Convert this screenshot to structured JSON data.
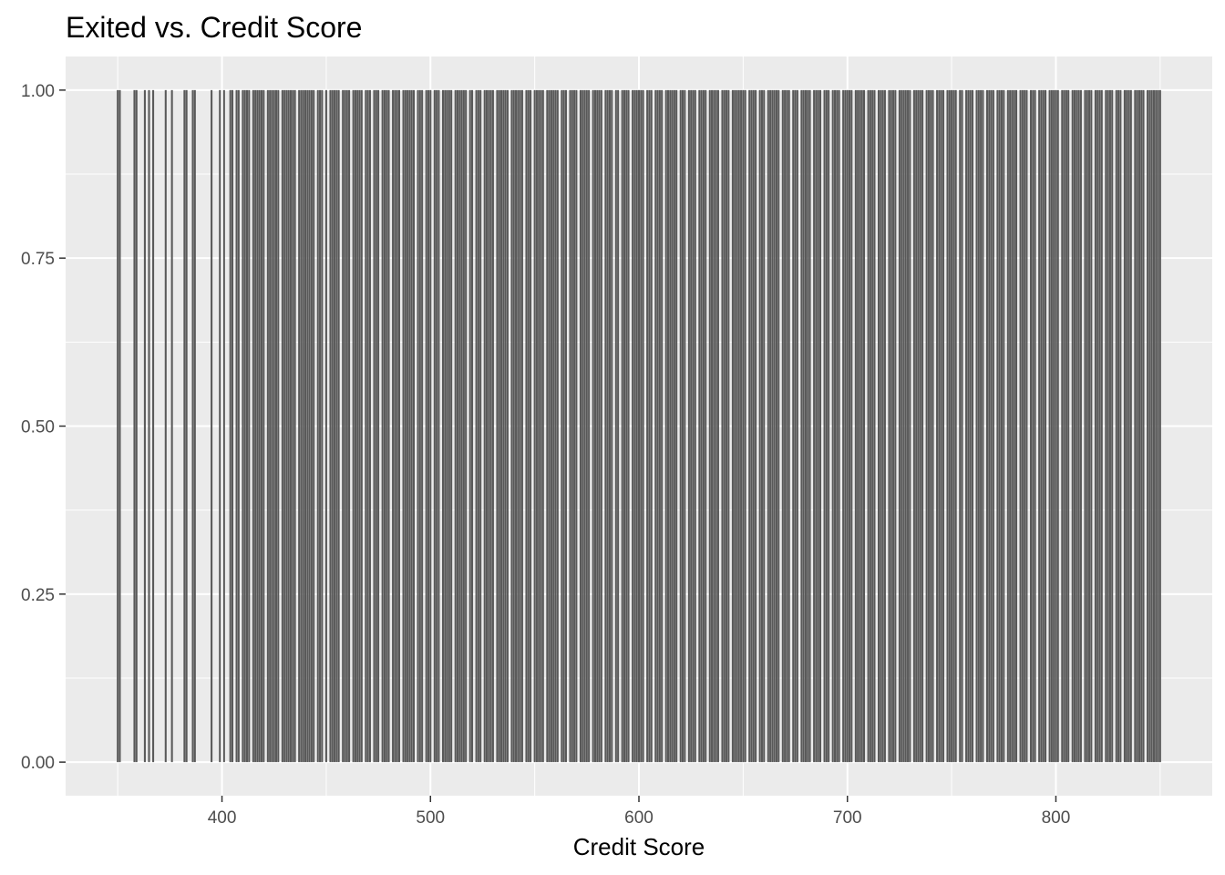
{
  "chart_data": {
    "type": "bar",
    "title": "Exited vs. Credit Score",
    "xlabel": "Credit Score",
    "ylabel": "",
    "xlim": [
      325,
      875
    ],
    "ylim": [
      -0.05,
      1.05
    ],
    "x_ticks": [
      400,
      500,
      600,
      700,
      800
    ],
    "x_minor_ticks": [
      350,
      450,
      550,
      650,
      750,
      850
    ],
    "y_ticks": [
      0.0,
      0.25,
      0.5,
      0.75,
      1.0
    ],
    "y_tick_labels": [
      "0.00",
      "0.25",
      "0.50",
      "0.75",
      "1.00"
    ],
    "y_minor_ticks": [
      0.125,
      0.375,
      0.625,
      0.875
    ],
    "bar_value": 1.0,
    "bar_width": 0.9,
    "sparse_scores": [
      350,
      351,
      358,
      359,
      363,
      365,
      367,
      373,
      376,
      382,
      383,
      386,
      387,
      395,
      399,
      401,
      404,
      405,
      407,
      408,
      410
    ],
    "dense_range": [
      411,
      850
    ],
    "missing_scores": [
      414,
      421,
      428,
      436,
      445,
      449,
      451,
      457,
      462,
      468,
      472,
      476,
      481,
      486,
      493,
      497,
      501,
      505,
      511,
      518,
      521,
      525,
      531,
      538,
      545,
      549,
      555,
      562,
      566,
      571,
      577,
      583,
      588,
      591,
      596,
      603,
      607,
      612,
      619,
      623,
      628,
      633,
      639,
      644,
      652,
      657,
      661,
      668,
      673,
      677,
      683,
      688,
      692,
      697,
      703,
      709,
      714,
      719,
      724,
      731,
      737,
      742,
      747,
      753,
      756,
      761,
      766,
      771,
      776,
      782,
      787,
      791,
      796,
      802,
      807,
      813,
      818,
      823,
      828,
      832,
      837,
      843
    ],
    "grid": true,
    "legend": "none",
    "colors": {
      "bar": "#595959",
      "panel_background": "#ebebeb",
      "grid": "#ffffff",
      "tick_text": "#4d4d4d",
      "tick_mark": "#333333"
    }
  }
}
